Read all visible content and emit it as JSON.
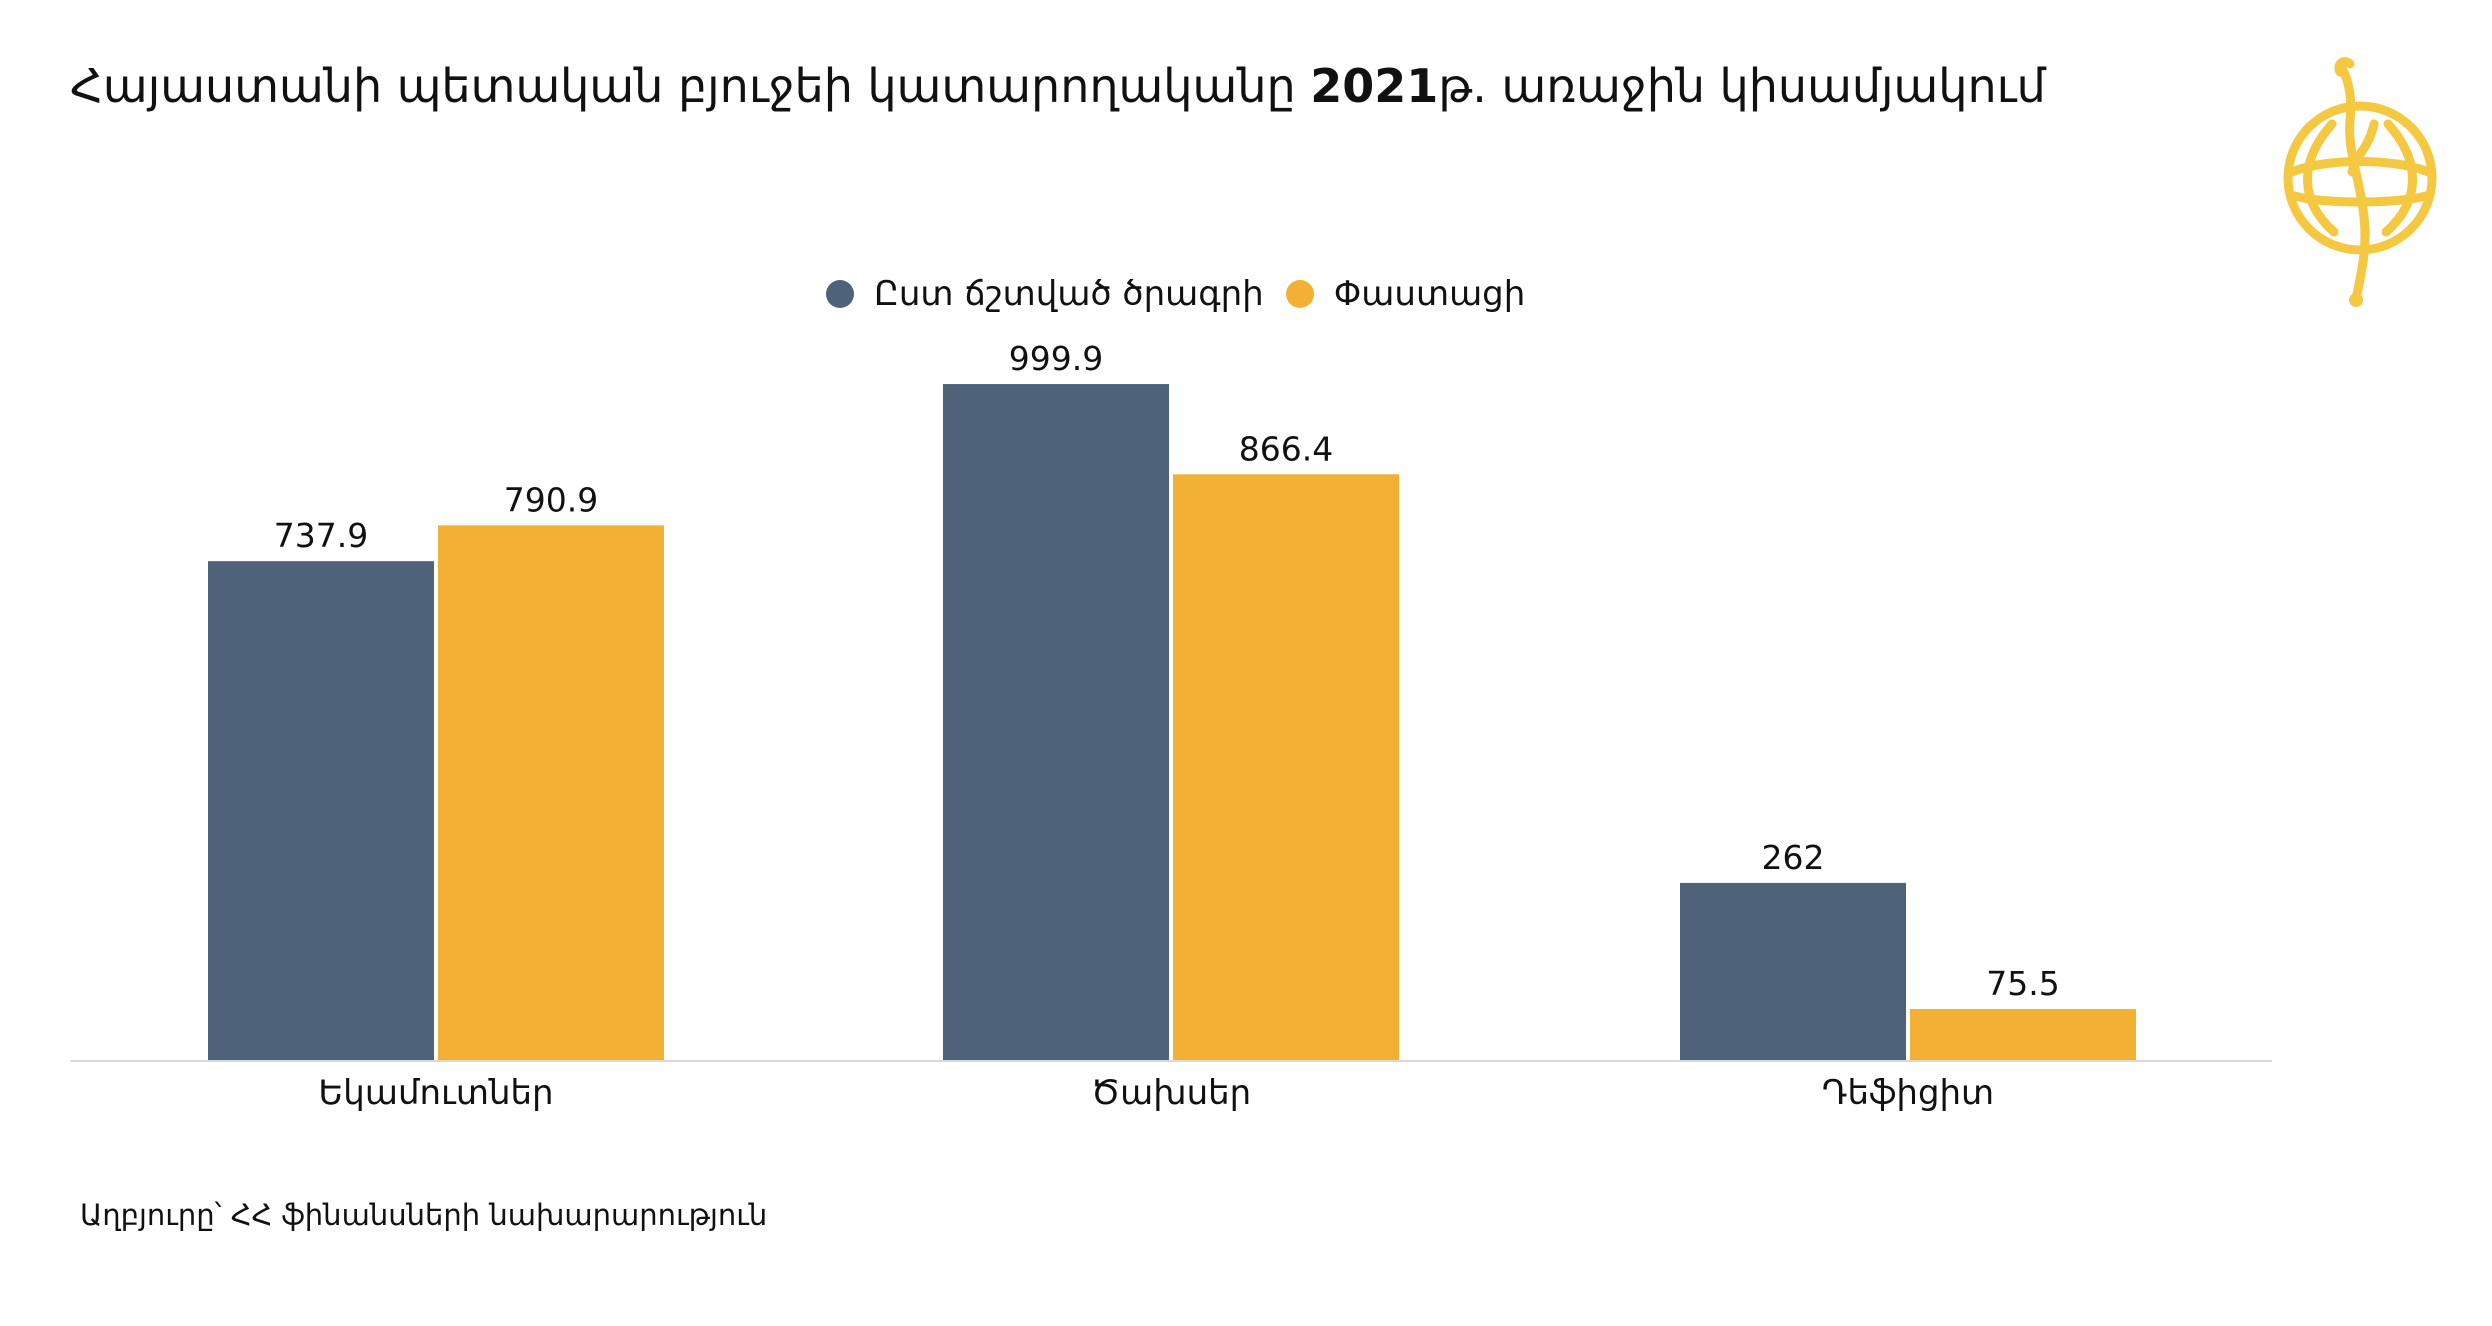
{
  "title": {
    "before": "Հայաստանի պետական բյուջեի կատարողականը ",
    "year": "2021",
    "after": "թ. առաջին կիսամյակում"
  },
  "source": "Աղբյուրը՝ ՀՀ ֆինանսների նախարարություն",
  "logo": {
    "icon": "globe-logo-icon",
    "color": "#F5C842"
  },
  "colors": {
    "series_1": "#4E6279",
    "series_2": "#F2B035",
    "baseline": "#D9D9D9",
    "text": "#111111"
  },
  "chart_data": {
    "type": "bar",
    "title": "Հայաստանի պետական բյուջեի կատարողականը 2021թ. առաջին կիսամյակում",
    "xlabel": "",
    "ylabel": "",
    "categories": [
      "Եկամուտներ",
      "Ծախսեր",
      "Դեֆիցիտ"
    ],
    "series": [
      {
        "name": "Ըստ ճշտված ծրագրի",
        "values": [
          737.9,
          999.9,
          262
        ]
      },
      {
        "name": "Փաստացի",
        "values": [
          790.9,
          866.4,
          75.5
        ]
      }
    ],
    "data_labels": [
      [
        "737.9",
        "999.9",
        "262"
      ],
      [
        "790.9",
        "866.4",
        "75.5"
      ]
    ],
    "ylim": [
      0,
      1000
    ],
    "y_axis_visible": false,
    "grid": false,
    "legend_position": "top-center"
  }
}
